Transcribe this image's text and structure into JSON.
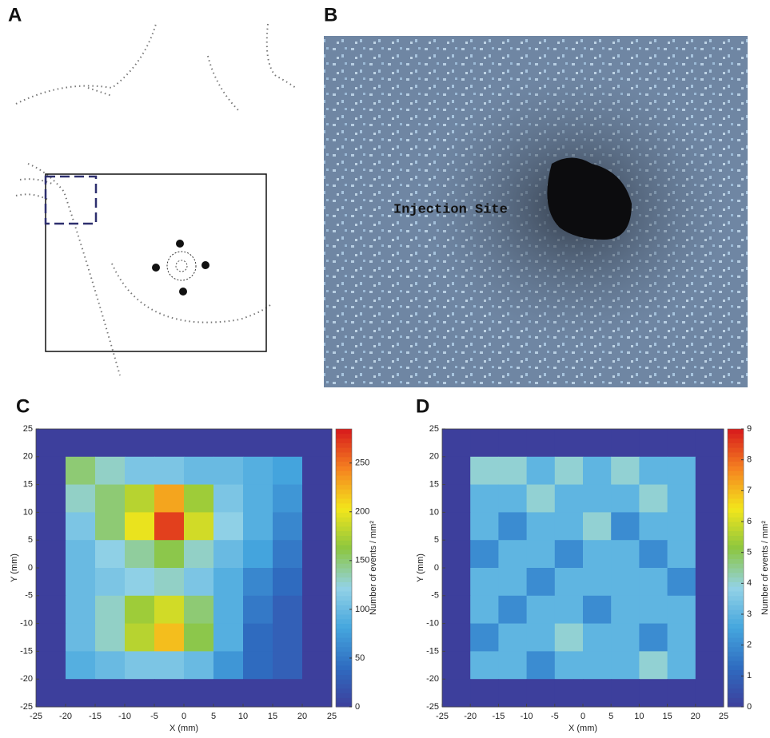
{
  "panel_labels": [
    "A",
    "B"
  ],
  "annotation": "Injection Site",
  "chart_data": [
    {
      "type": "heatmap",
      "label": "C",
      "xlabel": "X (mm)",
      "ylabel": "Y (mm)",
      "colorbar_label": "Number of events / mm²",
      "xlim": [
        -25,
        25
      ],
      "ylim": [
        -25,
        25
      ],
      "xticks": [
        -25,
        -20,
        -15,
        -10,
        -5,
        0,
        5,
        10,
        15,
        20,
        25
      ],
      "yticks": [
        -25,
        -20,
        -15,
        -10,
        -5,
        0,
        5,
        10,
        15,
        20,
        25
      ],
      "clim": [
        0,
        285
      ],
      "cticks": [
        0,
        50,
        100,
        150,
        200,
        250
      ],
      "colormap": [
        "#3d3f9c",
        "#2f6cc0",
        "#45a6de",
        "#93d2e6",
        "#8cc63f",
        "#f3e61b",
        "#f58220",
        "#d7191c"
      ],
      "z": [
        [
          0,
          0,
          0,
          0,
          0,
          0,
          0,
          0,
          0,
          0
        ],
        [
          0,
          150,
          130,
          110,
          110,
          100,
          100,
          90,
          80,
          0
        ],
        [
          0,
          130,
          150,
          180,
          230,
          170,
          110,
          90,
          70,
          0
        ],
        [
          0,
          110,
          150,
          200,
          270,
          190,
          120,
          90,
          60,
          0
        ],
        [
          0,
          100,
          120,
          140,
          160,
          130,
          100,
          80,
          50,
          0
        ],
        [
          0,
          100,
          110,
          120,
          130,
          110,
          90,
          60,
          40,
          0
        ],
        [
          0,
          100,
          130,
          170,
          190,
          150,
          90,
          50,
          30,
          0
        ],
        [
          0,
          100,
          130,
          180,
          220,
          160,
          90,
          40,
          30,
          0
        ],
        [
          0,
          90,
          100,
          110,
          110,
          100,
          70,
          40,
          30,
          0
        ],
        [
          0,
          0,
          0,
          0,
          0,
          0,
          0,
          0,
          0,
          0
        ]
      ]
    },
    {
      "type": "heatmap",
      "label": "D",
      "xlabel": "X (mm)",
      "ylabel": "Y (mm)",
      "colorbar_label": "Number of events / mm²",
      "xlim": [
        -25,
        25
      ],
      "ylim": [
        -25,
        25
      ],
      "xticks": [
        -25,
        -20,
        -15,
        -10,
        -5,
        0,
        5,
        10,
        15,
        20,
        25
      ],
      "yticks": [
        -25,
        -20,
        -15,
        -10,
        -5,
        0,
        5,
        10,
        15,
        20,
        25
      ],
      "clim": [
        0,
        9
      ],
      "cticks": [
        0,
        1,
        2,
        3,
        4,
        5,
        6,
        7,
        8,
        9
      ],
      "colormap": [
        "#3d3f9c",
        "#2f6cc0",
        "#45a6de",
        "#93d2e6",
        "#8cc63f",
        "#f3e61b",
        "#f58220",
        "#d7191c"
      ],
      "z": [
        [
          0,
          0,
          0,
          0,
          0,
          0,
          0,
          0,
          0,
          0
        ],
        [
          0,
          4,
          4,
          3,
          4,
          3,
          4,
          3,
          3,
          0
        ],
        [
          0,
          3,
          3,
          4,
          3,
          3,
          3,
          4,
          3,
          0
        ],
        [
          0,
          3,
          2,
          3,
          3,
          4,
          2,
          3,
          3,
          0
        ],
        [
          0,
          2,
          3,
          3,
          2,
          3,
          3,
          2,
          3,
          0
        ],
        [
          0,
          3,
          3,
          2,
          3,
          3,
          3,
          3,
          2,
          0
        ],
        [
          0,
          3,
          2,
          3,
          3,
          2,
          3,
          3,
          3,
          0
        ],
        [
          0,
          2,
          3,
          3,
          4,
          3,
          3,
          2,
          3,
          0
        ],
        [
          0,
          3,
          3,
          2,
          3,
          3,
          3,
          4,
          3,
          0
        ],
        [
          0,
          0,
          0,
          0,
          0,
          0,
          0,
          0,
          0,
          0
        ]
      ]
    }
  ]
}
